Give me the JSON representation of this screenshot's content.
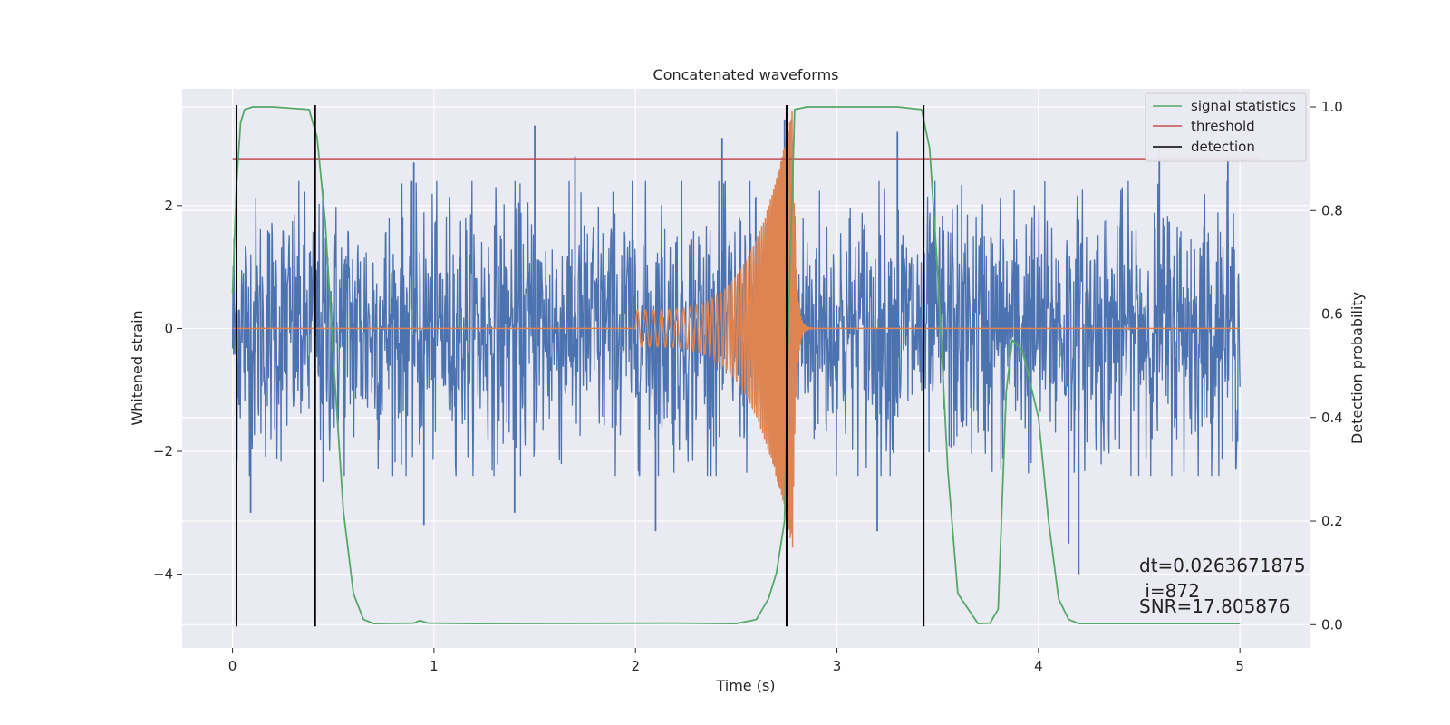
{
  "chart_data": {
    "type": "line",
    "title": "Concatenated waveforms",
    "xlabel": "Time (s)",
    "ylabel_left": "Whitened strain",
    "ylabel_right": "Detection probability",
    "xlim": [
      -0.25,
      5.35
    ],
    "ylim_left": [
      -5.2,
      3.9
    ],
    "ylim_right": [
      -0.045,
      1.035
    ],
    "x_ticks": [
      0,
      1,
      2,
      3,
      4,
      5
    ],
    "y_left_ticks": [
      -4,
      -2,
      0,
      2
    ],
    "y_right_ticks": [
      0.0,
      0.2,
      0.4,
      0.6,
      0.8,
      1.0
    ],
    "x_tick_labels": [
      "0",
      "1",
      "2",
      "3",
      "4",
      "5"
    ],
    "y_left_tick_labels": [
      "−4",
      "−2",
      "0",
      "2"
    ],
    "y_right_tick_labels": [
      "0.0",
      "0.2",
      "0.4",
      "0.6",
      "0.8",
      "1.0"
    ],
    "grid": true,
    "legend_position": "top-right",
    "legend": [
      {
        "label": "signal statistics",
        "color": "#55a868"
      },
      {
        "label": "threshold",
        "color": "#c44e52"
      },
      {
        "label": "detection",
        "color": "#000000"
      }
    ],
    "noise_series": {
      "color": "#4c72b0",
      "x_range": [
        0,
        5
      ],
      "typical_amplitude": 1.4,
      "peaks": [
        {
          "x": 0.09,
          "y": -3.0
        },
        {
          "x": 0.45,
          "y": -2.5
        },
        {
          "x": 0.9,
          "y": 2.7
        },
        {
          "x": 0.95,
          "y": -3.2
        },
        {
          "x": 1.4,
          "y": -3.0
        },
        {
          "x": 1.5,
          "y": 3.3
        },
        {
          "x": 1.7,
          "y": 2.8
        },
        {
          "x": 2.1,
          "y": -3.3
        },
        {
          "x": 2.43,
          "y": 3.1
        },
        {
          "x": 2.74,
          "y": 3.4
        },
        {
          "x": 3.3,
          "y": 3.2
        },
        {
          "x": 3.2,
          "y": -3.3
        },
        {
          "x": 4.2,
          "y": -4.0
        },
        {
          "x": 4.15,
          "y": -3.5
        },
        {
          "x": 4.6,
          "y": 3.0
        },
        {
          "x": 4.94,
          "y": 2.8
        }
      ]
    },
    "chirp_series": {
      "color": "#dd8452",
      "baseline": 0,
      "x_start": 2.0,
      "x_peak": 2.78,
      "x_ringdown_end": 2.9,
      "start_amplitude": 0.3,
      "peak_amplitude": 3.6,
      "start_frequency_hz": 25,
      "peak_frequency_hz": 180
    },
    "threshold": {
      "value": 0.9,
      "x_range": [
        0,
        5.1
      ]
    },
    "signal_statistics": {
      "x": [
        0.0,
        0.02,
        0.04,
        0.06,
        0.1,
        0.2,
        0.38,
        0.42,
        0.46,
        0.5,
        0.55,
        0.6,
        0.65,
        0.7,
        0.9,
        0.93,
        0.97,
        1.2,
        2.2,
        2.5,
        2.6,
        2.66,
        2.7,
        2.74,
        2.76,
        2.79,
        2.85,
        3.3,
        3.42,
        3.46,
        3.5,
        3.55,
        3.6,
        3.7,
        3.76,
        3.8,
        3.84,
        3.87,
        3.92,
        4.0,
        4.05,
        4.1,
        4.15,
        4.2,
        5.0
      ],
      "y": [
        0.64,
        0.85,
        0.97,
        0.995,
        1.0,
        1.0,
        0.995,
        0.94,
        0.78,
        0.52,
        0.22,
        0.06,
        0.01,
        0.002,
        0.003,
        0.008,
        0.003,
        0.002,
        0.003,
        0.002,
        0.01,
        0.05,
        0.1,
        0.2,
        0.6,
        0.995,
        1.0,
        1.0,
        0.995,
        0.92,
        0.68,
        0.3,
        0.06,
        0.002,
        0.003,
        0.03,
        0.45,
        0.55,
        0.53,
        0.4,
        0.2,
        0.05,
        0.01,
        0.002,
        0.002
      ]
    },
    "detections": [
      0.02,
      0.41,
      2.75,
      3.43
    ]
  },
  "annotations": {
    "dt": "dt=0.0263671875",
    "i": " i=872",
    "snr": "SNR=17.805876"
  }
}
